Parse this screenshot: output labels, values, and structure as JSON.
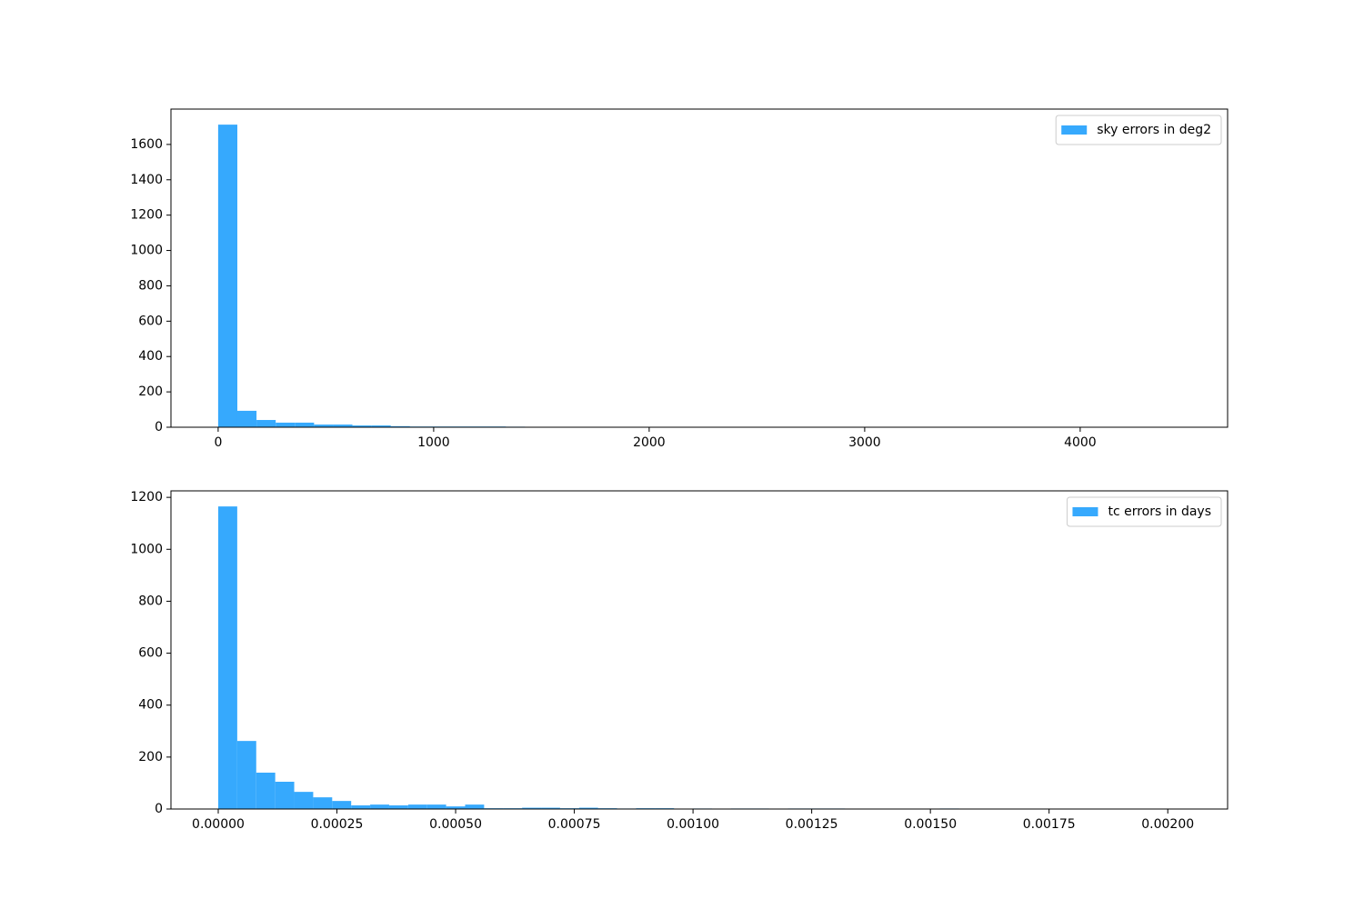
{
  "chart_data": [
    {
      "type": "histogram",
      "bins": [
        0,
        89,
        178,
        267,
        356,
        445,
        534,
        623,
        712,
        801,
        890,
        979,
        1068,
        1157,
        1246,
        1335,
        1424,
        1513,
        1602,
        1691,
        1780,
        1869,
        1958,
        2047,
        2136,
        2225,
        2314,
        2403,
        2492,
        2581,
        2670,
        2759,
        2848,
        2937,
        3026,
        3115,
        3204,
        3293,
        3382,
        3471,
        3560,
        3649,
        3738,
        3827,
        3916,
        4005,
        4094,
        4183,
        4272,
        4361,
        4450
      ],
      "series": [
        {
          "name": "sky errors in deg2",
          "color": "#36a9fd",
          "values": [
            1712,
            93,
            41,
            26,
            26,
            15,
            15,
            10,
            10,
            6,
            4,
            4,
            4,
            4,
            4,
            3,
            0,
            0,
            0,
            2,
            0,
            0,
            0,
            0,
            2,
            0,
            0,
            0,
            2,
            0,
            0,
            0,
            0,
            0,
            0,
            0,
            0,
            0,
            0,
            0,
            0,
            0,
            0,
            0,
            0,
            0,
            0,
            0,
            0,
            1
          ]
        }
      ],
      "xlim": [
        -219,
        4684
      ],
      "xticks": [
        0,
        1000,
        2000,
        3000,
        4000
      ],
      "ylim": [
        0,
        1800
      ],
      "yticks": [
        0,
        200,
        400,
        600,
        800,
        1000,
        1200,
        1400,
        1600
      ],
      "legend": "upper right"
    },
    {
      "type": "histogram",
      "bins": [
        0,
        4e-05,
        8e-05,
        0.00012,
        0.00016,
        0.0002,
        0.00024,
        0.00028,
        0.00032,
        0.00036,
        0.0004,
        0.00044,
        0.00048,
        0.00052,
        0.00056,
        0.0006,
        0.00064,
        0.00068,
        0.00072,
        0.00076,
        0.0008,
        0.00084,
        0.00088,
        0.00092,
        0.00096,
        0.001,
        0.00104,
        0.00108,
        0.00112,
        0.00116,
        0.0012,
        0.00124,
        0.00128,
        0.00132,
        0.00136,
        0.0014,
        0.00144,
        0.00148,
        0.00152,
        0.00156,
        0.0016,
        0.00164,
        0.00168,
        0.00172,
        0.00176,
        0.0018,
        0.00184,
        0.00188,
        0.00192,
        0.00196,
        0.002
      ],
      "series": [
        {
          "name": "tc errors in days",
          "color": "#36a9fd",
          "values": [
            1165,
            262,
            140,
            105,
            66,
            45,
            31,
            14,
            17,
            14,
            17,
            17,
            10,
            17,
            3,
            3,
            5,
            5,
            3,
            5,
            3,
            2,
            3,
            3,
            0,
            2,
            0,
            2,
            2,
            0,
            2,
            2,
            2,
            0,
            0,
            0,
            0,
            0,
            2,
            0,
            0,
            0,
            0,
            0,
            0,
            0,
            0,
            0,
            0,
            1
          ]
        }
      ],
      "xlim": [
        -9.96e-05,
        0.002126
      ],
      "xticks": [
        {
          "value": 0,
          "label": "0.00000"
        },
        {
          "value": 0.00025,
          "label": "0.00025"
        },
        {
          "value": 0.0005,
          "label": "0.00050"
        },
        {
          "value": 0.00075,
          "label": "0.00075"
        },
        {
          "value": 0.001,
          "label": "0.00100"
        },
        {
          "value": 0.00125,
          "label": "0.00125"
        },
        {
          "value": 0.0015,
          "label": "0.00150"
        },
        {
          "value": 0.00175,
          "label": "0.00175"
        },
        {
          "value": 0.002,
          "label": "0.00200"
        }
      ],
      "ylim": [
        0,
        1225
      ],
      "yticks": [
        0,
        200,
        400,
        600,
        800,
        1000,
        1200
      ],
      "legend": "upper right"
    }
  ]
}
